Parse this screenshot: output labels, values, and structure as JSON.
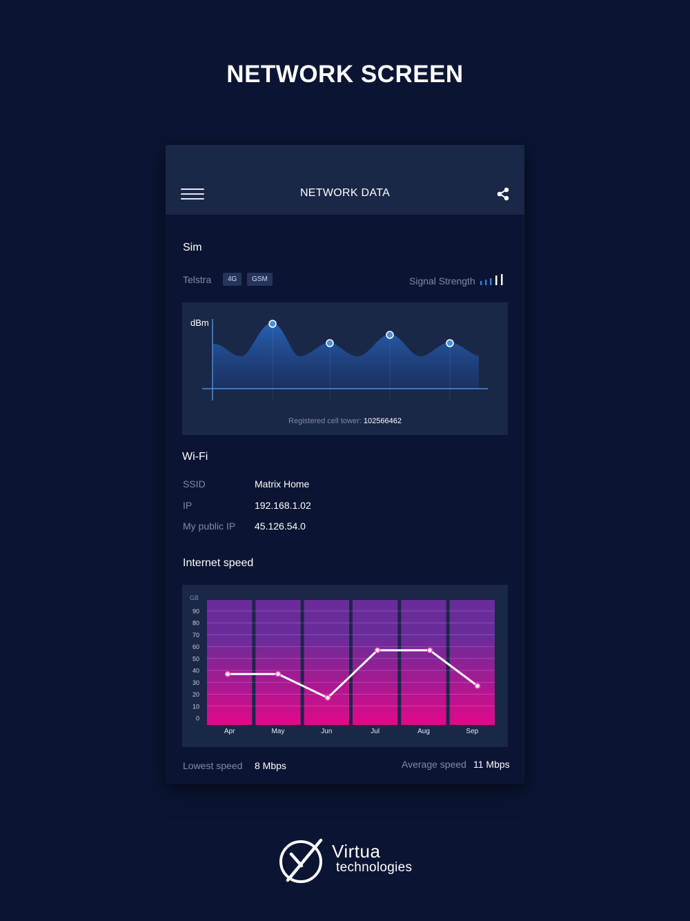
{
  "page_title": "NETWORK SCREEN",
  "appbar": {
    "title": "NETWORK DATA",
    "menu_icon": "hamburger-menu-icon",
    "share_icon": "share-icon"
  },
  "sim": {
    "title": "Sim",
    "carrier": "Telstra",
    "badges": [
      "4G",
      "GSM"
    ],
    "signal_label": "Signal Strength",
    "signal_icon": "signal-bars-icon",
    "chart": {
      "y_label": "dBm",
      "tower_label": "Registered cell tower:",
      "tower_id": "102566462",
      "fill_color": "#2a64b8",
      "marker_color": "#5aa6ff"
    }
  },
  "wifi": {
    "title": "Wi-Fi",
    "rows": [
      {
        "label": "SSID",
        "value": "Matrix Home"
      },
      {
        "label": "IP",
        "value": "192.168.1.02"
      },
      {
        "label": "My public IP",
        "value": "45.126.54.0"
      }
    ]
  },
  "internet": {
    "title": "Internet speed",
    "lowest_label": "Lowest speed",
    "lowest_value": "8 Mbps",
    "average_label": "Average speed",
    "average_value": "11 Mbps"
  },
  "chart_data": {
    "type": "line",
    "categories": [
      "Apr",
      "May",
      "Jun",
      "Jul",
      "Aug",
      "Sep"
    ],
    "values": [
      37,
      37,
      17,
      57,
      57,
      27
    ],
    "ylabel": "GB",
    "yticks": [
      0,
      10,
      20,
      30,
      40,
      50,
      60,
      70,
      80,
      90
    ],
    "ylim": [
      0,
      90
    ],
    "grid": true,
    "bar_gradient": [
      "#6a2c9a",
      "#e0098a"
    ],
    "line_color": "#ffffff",
    "marker_color": "#ff4fbf"
  },
  "logo": {
    "name": "Virtua",
    "tagline": "technologies",
    "icon": "virtua-logo-icon"
  }
}
